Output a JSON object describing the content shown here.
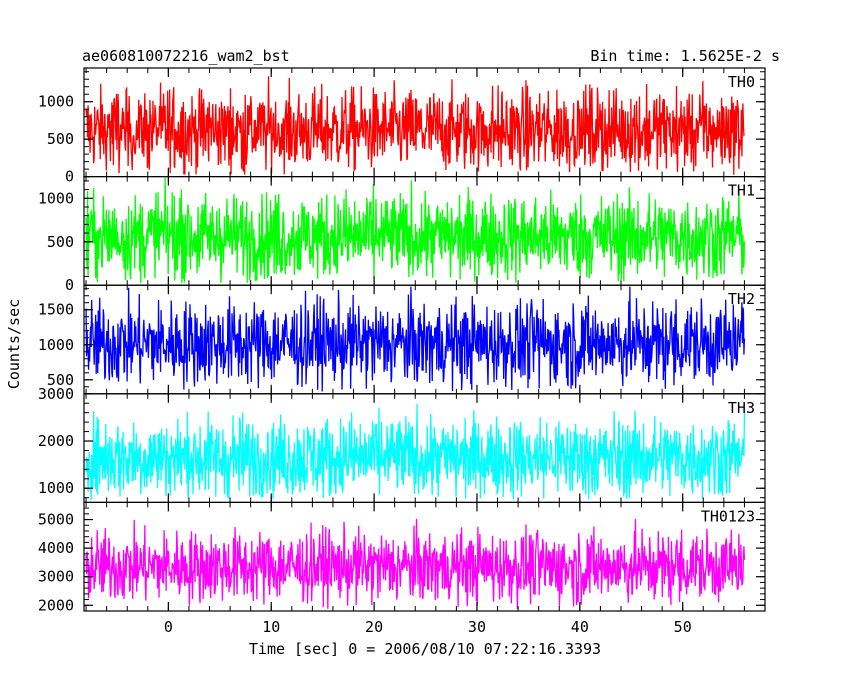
{
  "header": {
    "title": "ae060810072216_wam2_bst",
    "bin_time": "Bin time: 1.5625E-2 s"
  },
  "chart_data": {
    "type": "line",
    "xlabel": "Time [sec] 0 = 2006/08/10 07:22:16.3393",
    "ylabel": "Counts/sec",
    "xlim": [
      -8.2,
      58.0
    ],
    "data_xrange": [
      -8.0,
      56.0
    ],
    "x_ticks": [
      "0",
      "10",
      "20",
      "30",
      "40",
      "50"
    ],
    "x_tick_values": [
      0,
      10,
      20,
      30,
      40,
      50
    ],
    "x_minor_step": 2,
    "panels": [
      {
        "name": "TH0",
        "color": "#ff0000",
        "ylim": [
          0,
          1450
        ],
        "y_ticks": [
          "0",
          "500",
          "1000"
        ],
        "y_tick_values": [
          0,
          500,
          1000
        ],
        "mean": 620,
        "spread": 270,
        "min": 20,
        "max": 1450
      },
      {
        "name": "TH1",
        "color": "#00ff00",
        "ylim": [
          0,
          1250
        ],
        "y_ticks": [
          "0",
          "500",
          "1000"
        ],
        "y_tick_values": [
          0,
          500,
          1000
        ],
        "mean": 560,
        "spread": 245,
        "min": 20,
        "max": 1250
      },
      {
        "name": "TH2",
        "color": "#0000ff",
        "ylim": [
          300,
          1850
        ],
        "y_ticks": [
          "500",
          "1000",
          "1500"
        ],
        "y_tick_values": [
          500,
          1000,
          1500
        ],
        "mean": 1020,
        "spread": 300,
        "min": 320,
        "max": 1850
      },
      {
        "name": "TH3",
        "color": "#00ffff",
        "ylim": [
          700,
          3000
        ],
        "y_ticks": [
          "1000",
          "2000",
          "3000"
        ],
        "y_tick_values": [
          1000,
          2000,
          3000
        ],
        "mean": 1650,
        "spread": 430,
        "min": 750,
        "max": 3000
      },
      {
        "name": "TH0123",
        "color": "#ff00ff",
        "ylim": [
          1800,
          5600
        ],
        "y_ticks": [
          "2000",
          "3000",
          "4000",
          "5000"
        ],
        "y_tick_values": [
          2000,
          3000,
          4000,
          5000
        ],
        "mean": 3350,
        "spread": 620,
        "min": 1850,
        "max": 5600
      }
    ]
  }
}
